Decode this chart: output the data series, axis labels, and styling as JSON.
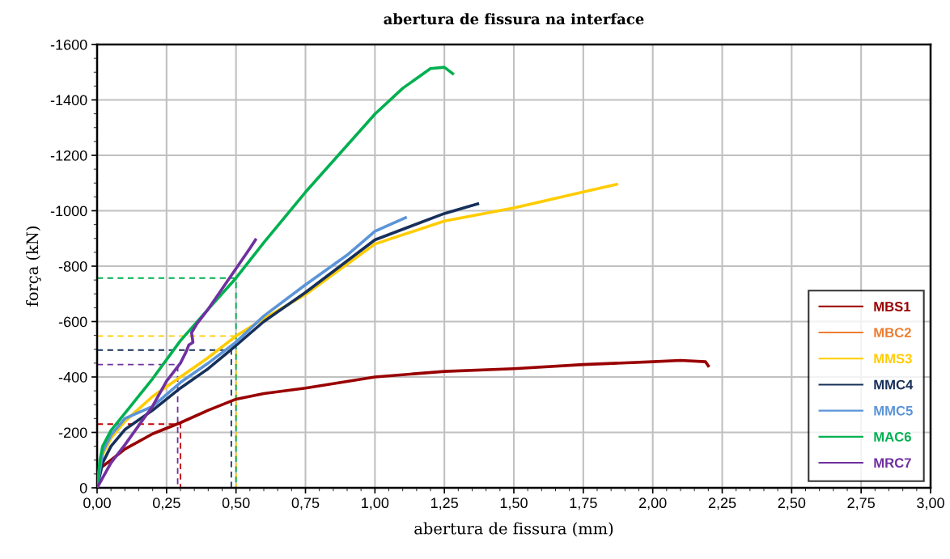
{
  "chart_data": {
    "type": "line",
    "title": "abertura de fissura na interface",
    "xlabel": "abertura de fissura (mm)",
    "ylabel": "força (kN)",
    "xlim": [
      0,
      3
    ],
    "ylim": [
      0,
      -1600
    ],
    "xticks": [
      {
        "value": 0,
        "label": "0,00"
      },
      {
        "value": 0.25,
        "label": "0,25"
      },
      {
        "value": 0.5,
        "label": "0,50"
      },
      {
        "value": 0.75,
        "label": "0,75"
      },
      {
        "value": 1,
        "label": "1,00"
      },
      {
        "value": 1.25,
        "label": "1,25"
      },
      {
        "value": 1.5,
        "label": "1,50"
      },
      {
        "value": 1.75,
        "label": "1,75"
      },
      {
        "value": 2,
        "label": "2,00"
      },
      {
        "value": 2.25,
        "label": "2,25"
      },
      {
        "value": 2.5,
        "label": "2,50"
      },
      {
        "value": 2.75,
        "label": "2,75"
      },
      {
        "value": 3,
        "label": "3,00"
      }
    ],
    "yticks": [
      0,
      -200,
      -400,
      -600,
      -800,
      -1000,
      -1200,
      -1400,
      -1600
    ],
    "grid": true,
    "legend": "lower right",
    "marker": "none",
    "line_style": "solid",
    "series": [
      {
        "name": "MBS1",
        "color": "#990000",
        "x": [
          0,
          0.01,
          0.05,
          0.1,
          0.2,
          0.3,
          0.4,
          0.5,
          0.6,
          0.75,
          1.0,
          1.25,
          1.5,
          1.75,
          2.0,
          2.1,
          2.19,
          2.2
        ],
        "values": [
          0,
          -70,
          -100,
          -140,
          -195,
          -235,
          -280,
          -320,
          -340,
          -360,
          -400,
          -420,
          -430,
          -445,
          -455,
          -460,
          -455,
          -440
        ]
      },
      {
        "name": "MBC2",
        "color": "#ed7d31"
      },
      {
        "name": "MMS3",
        "color": "#ffcc00",
        "x": [
          0,
          0.02,
          0.05,
          0.1,
          0.2,
          0.3,
          0.4,
          0.5,
          0.6,
          0.75,
          1.0,
          1.25,
          1.5,
          1.75,
          1.87
        ],
        "values": [
          0,
          -120,
          -180,
          -240,
          -330,
          -400,
          -470,
          -548,
          -610,
          -698,
          -880,
          -963,
          -1010,
          -1068,
          -1095
        ]
      },
      {
        "name": "MMC4",
        "color": "#17305a",
        "x": [
          0,
          0.02,
          0.05,
          0.1,
          0.2,
          0.3,
          0.4,
          0.48,
          0.6,
          0.75,
          1.0,
          1.25,
          1.37
        ],
        "values": [
          0,
          -90,
          -150,
          -210,
          -280,
          -360,
          -430,
          -497,
          -600,
          -705,
          -895,
          -990,
          -1025
        ]
      },
      {
        "name": "MMC5",
        "color": "#5b94d8",
        "x": [
          0,
          0.02,
          0.05,
          0.1,
          0.2,
          0.3,
          0.4,
          0.5,
          0.6,
          0.75,
          0.9,
          1.0,
          1.11
        ],
        "values": [
          0,
          -130,
          -190,
          -250,
          -294,
          -380,
          -450,
          -526,
          -620,
          -733,
          -840,
          -926,
          -975
        ]
      },
      {
        "name": "MAC6",
        "color": "#00b050",
        "x": [
          0,
          0.01,
          0.02,
          0.05,
          0.1,
          0.2,
          0.3,
          0.4,
          0.5,
          0.6,
          0.75,
          1.0,
          1.1,
          1.2,
          1.25,
          1.28
        ],
        "values": [
          0,
          -100,
          -150,
          -207,
          -269,
          -394,
          -531,
          -645,
          -757,
          -885,
          -1067,
          -1349,
          -1442,
          -1513,
          -1518,
          -1495
        ]
      },
      {
        "name": "MRC7",
        "color": "#7030a0",
        "x": [
          0,
          0.05,
          0.1,
          0.2,
          0.25,
          0.3,
          0.32,
          0.33,
          0.345,
          0.34,
          0.36,
          0.4,
          0.45,
          0.5,
          0.55,
          0.57
        ],
        "values": [
          0,
          -90,
          -155,
          -295,
          -385,
          -450,
          -490,
          -515,
          -525,
          -560,
          -593,
          -645,
          -718,
          -791,
          -864,
          -895
        ]
      },
      {
        "color": "#c00000",
        "line_style": "dashed",
        "x": [
          0,
          0.3,
          0.3
        ],
        "values": [
          -230,
          -230,
          0
        ]
      },
      {
        "color": "#7030a0",
        "line_style": "dashed",
        "x": [
          0,
          0.29,
          0.29
        ],
        "values": [
          -445,
          -445,
          0
        ]
      },
      {
        "color": "#17305a",
        "line_style": "dashed",
        "x": [
          0,
          0.483,
          0.483
        ],
        "values": [
          -497,
          -497,
          0
        ]
      },
      {
        "color": "#ffcc00",
        "line_style": "dashed",
        "x": [
          0,
          0.5,
          0.5
        ],
        "values": [
          -548,
          -548,
          0
        ]
      },
      {
        "color": "#00b050",
        "line_style": "dashed",
        "x": [
          0,
          0.5,
          0.5
        ],
        "values": [
          -757,
          -757,
          0
        ]
      }
    ]
  }
}
